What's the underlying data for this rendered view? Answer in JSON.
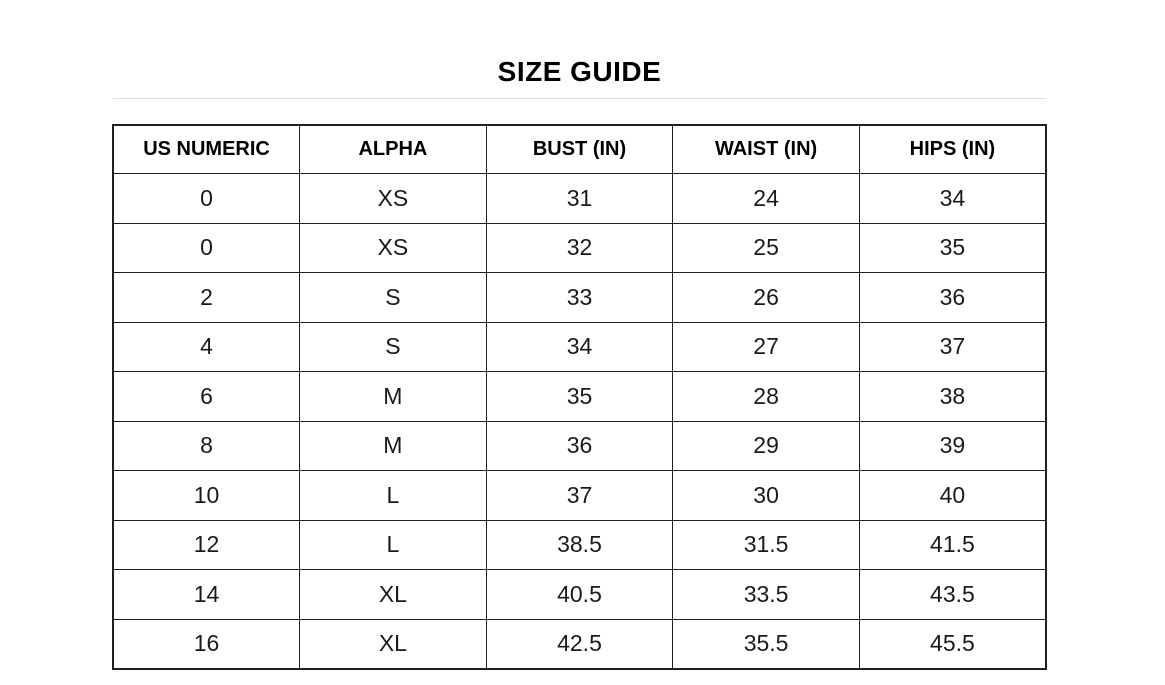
{
  "page": {
    "title": "SIZE GUIDE"
  },
  "table": {
    "columns": [
      "US NUMERIC",
      "ALPHA",
      "BUST (IN)",
      "WAIST (IN)",
      "HIPS (IN)"
    ],
    "rows": [
      [
        "0",
        "XS",
        "31",
        "24",
        "34"
      ],
      [
        "0",
        "XS",
        "32",
        "25",
        "35"
      ],
      [
        "2",
        "S",
        "33",
        "26",
        "36"
      ],
      [
        "4",
        "S",
        "34",
        "27",
        "37"
      ],
      [
        "6",
        "M",
        "35",
        "28",
        "38"
      ],
      [
        "8",
        "M",
        "36",
        "29",
        "39"
      ],
      [
        "10",
        "L",
        "37",
        "30",
        "40"
      ],
      [
        "12",
        "L",
        "38.5",
        "31.5",
        "41.5"
      ],
      [
        "14",
        "XL",
        "40.5",
        "33.5",
        "43.5"
      ],
      [
        "16",
        "XL",
        "42.5",
        "35.5",
        "45.5"
      ]
    ]
  },
  "colors": {
    "text": "#1a1a1a",
    "heading": "#000000",
    "border": "#1f1f1f",
    "divider": "#dedede",
    "background": "#ffffff"
  }
}
